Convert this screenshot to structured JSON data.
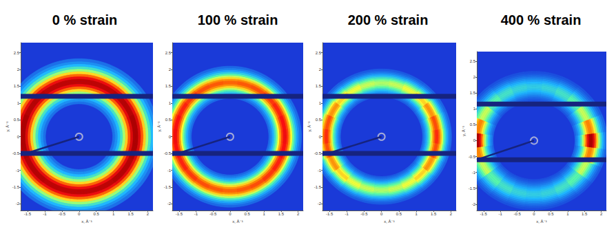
{
  "chart_data": [
    {
      "type": "ring_pattern",
      "title": "0 % strain",
      "xlabel": "x, Å⁻¹",
      "ylabel": "y, Å⁻¹",
      "xlim": [
        -1.7,
        2.15
      ],
      "xticks": [
        -1.5,
        -1,
        -0.5,
        0,
        0.5,
        1,
        1.5,
        2
      ],
      "ylim": [
        -2.2,
        2.8
      ],
      "yticks": [
        -2,
        -1.5,
        -1,
        -0.5,
        0,
        0.5,
        1,
        1.5,
        2,
        2.5
      ],
      "beam_center": [
        0,
        0
      ],
      "beamstop_end": [
        -1.7,
        -0.55
      ],
      "detector_gaps_y": [
        1.2,
        -0.5
      ],
      "ring_q": 1.65,
      "ring_width": 0.42,
      "azimuth": [
        0,
        15,
        30,
        45,
        60,
        75,
        90,
        105,
        120,
        135,
        150,
        165,
        180,
        195,
        210,
        225,
        240,
        255,
        270,
        285,
        300,
        315,
        330,
        345
      ],
      "ring_intensity": [
        1,
        1,
        0.99,
        0.99,
        0.98,
        0.98,
        0.98,
        0.98,
        0.98,
        0.99,
        0.99,
        1,
        1,
        1,
        0.99,
        0.99,
        0.98,
        0.98,
        0.98,
        0.98,
        0.98,
        0.99,
        0.99,
        1
      ]
    },
    {
      "type": "ring_pattern",
      "title": "100 % strain",
      "xlabel": "x, Å⁻¹",
      "ylabel": "y, Å⁻¹",
      "xlim": [
        -1.7,
        2.15
      ],
      "xticks": [
        -1.5,
        -1,
        -0.5,
        0,
        0.5,
        1,
        1.5,
        2
      ],
      "ylim": [
        -2.2,
        2.8
      ],
      "yticks": [
        -2,
        -1.5,
        -1,
        -0.5,
        0,
        0.5,
        1,
        1.5,
        2,
        2.5
      ],
      "beam_center": [
        0,
        0
      ],
      "beamstop_end": [
        -1.7,
        -0.55
      ],
      "detector_gaps_y": [
        1.2,
        -0.5
      ],
      "ring_q": 1.62,
      "ring_width": 0.3,
      "azimuth": [
        0,
        15,
        30,
        45,
        60,
        75,
        90,
        105,
        120,
        135,
        150,
        165,
        180,
        195,
        210,
        225,
        240,
        255,
        270,
        285,
        300,
        315,
        330,
        345
      ],
      "ring_intensity": [
        0.92,
        0.91,
        0.89,
        0.87,
        0.85,
        0.84,
        0.83,
        0.84,
        0.85,
        0.87,
        0.89,
        0.91,
        0.92,
        0.91,
        0.89,
        0.87,
        0.85,
        0.84,
        0.83,
        0.84,
        0.85,
        0.87,
        0.89,
        0.91
      ]
    },
    {
      "type": "ring_pattern",
      "title": "200 % strain",
      "xlabel": "x, Å⁻¹",
      "ylabel": "y, Å⁻¹",
      "xlim": [
        -1.7,
        2.15
      ],
      "xticks": [
        -1.5,
        -1,
        -0.5,
        0,
        0.5,
        1,
        1.5,
        2
      ],
      "ylim": [
        -2.2,
        2.8
      ],
      "yticks": [
        -2,
        -1.5,
        -1,
        -0.5,
        0,
        0.5,
        1,
        1.5,
        2,
        2.5
      ],
      "beam_center": [
        0,
        0
      ],
      "beamstop_end": [
        -1.7,
        -0.55
      ],
      "detector_gaps_y": [
        1.2,
        -0.5
      ],
      "ring_q": 1.6,
      "ring_width": 0.26,
      "azimuth": [
        0,
        15,
        30,
        45,
        60,
        75,
        90,
        105,
        120,
        135,
        150,
        165,
        180,
        195,
        210,
        225,
        240,
        255,
        270,
        285,
        300,
        315,
        330,
        345
      ],
      "ring_intensity": [
        0.88,
        0.85,
        0.78,
        0.7,
        0.64,
        0.6,
        0.58,
        0.6,
        0.64,
        0.7,
        0.78,
        0.85,
        0.88,
        0.85,
        0.78,
        0.7,
        0.64,
        0.6,
        0.58,
        0.6,
        0.64,
        0.7,
        0.78,
        0.85
      ]
    },
    {
      "type": "ring_pattern",
      "title": "400 % strain",
      "xlabel": "x, Å⁻¹",
      "ylabel": "y, Å⁻¹",
      "xlim": [
        -1.7,
        2.15
      ],
      "xticks": [
        -1.5,
        -1,
        -0.5,
        0,
        0.5,
        1,
        1.5,
        2
      ],
      "ylim": [
        -2.2,
        2.8
      ],
      "yticks": [
        -2,
        -1.5,
        -1,
        -0.5,
        0,
        0.5,
        1,
        1.5,
        2,
        2.5
      ],
      "beam_center": [
        0,
        0
      ],
      "beamstop_end": [
        -1.7,
        -0.6
      ],
      "detector_gaps_y": [
        1.15,
        -0.6
      ],
      "ring_q": 1.7,
      "ring_width": 0.3,
      "azimuth": [
        0,
        15,
        30,
        45,
        60,
        75,
        90,
        105,
        120,
        135,
        150,
        165,
        180,
        195,
        210,
        225,
        240,
        255,
        270,
        285,
        300,
        315,
        330,
        345
      ],
      "ring_intensity": [
        1,
        0.8,
        0.6,
        0.48,
        0.42,
        0.38,
        0.36,
        0.38,
        0.42,
        0.48,
        0.6,
        0.8,
        1,
        0.8,
        0.6,
        0.48,
        0.42,
        0.38,
        0.36,
        0.38,
        0.42,
        0.48,
        0.6,
        0.8
      ]
    }
  ]
}
